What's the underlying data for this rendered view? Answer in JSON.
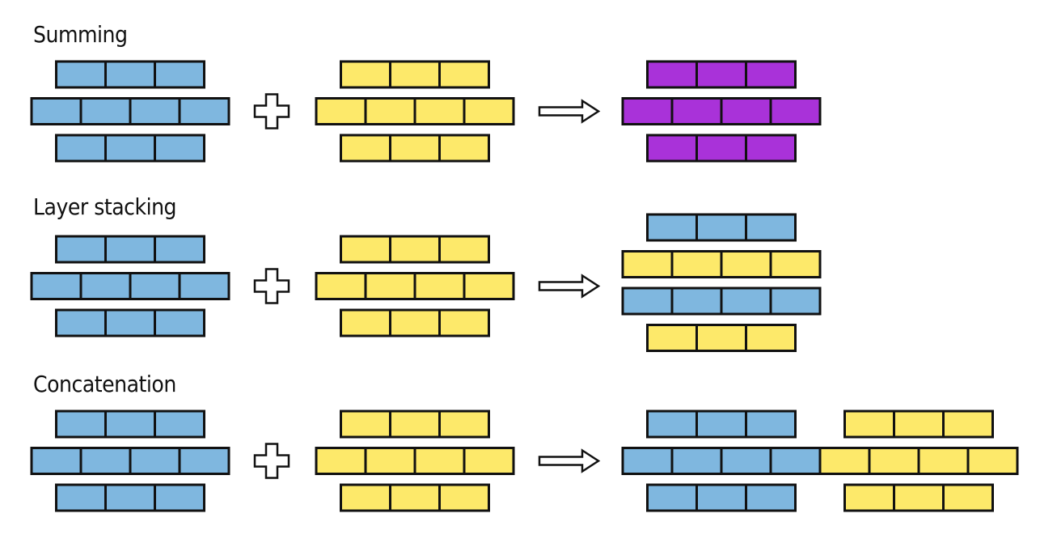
{
  "colors": {
    "blue": "#7fb7df",
    "yellow": "#fde96a",
    "purple": "#a932d9",
    "outline": "#111111",
    "background": "#ffffff"
  },
  "sections": [
    {
      "id": "summing",
      "title": "Summing",
      "inputs": [
        {
          "color": "blue",
          "rows": [
            3,
            4,
            3
          ]
        },
        {
          "color": "yellow",
          "rows": [
            3,
            4,
            3
          ]
        }
      ],
      "operator_icon": "plus-icon",
      "arrow_icon": "arrow-right-icon",
      "result": {
        "kind": "sum",
        "rows": [
          {
            "blocks": [
              {
                "color": "purple",
                "cells": 3
              }
            ]
          },
          {
            "blocks": [
              {
                "color": "purple",
                "cells": 4
              }
            ]
          },
          {
            "blocks": [
              {
                "color": "purple",
                "cells": 3
              }
            ]
          }
        ]
      }
    },
    {
      "id": "layer-stacking",
      "title": "Layer stacking",
      "inputs": [
        {
          "color": "blue",
          "rows": [
            3,
            4,
            3
          ]
        },
        {
          "color": "yellow",
          "rows": [
            3,
            4,
            3
          ]
        }
      ],
      "operator_icon": "plus-icon",
      "arrow_icon": "arrow-right-icon",
      "result": {
        "kind": "stack",
        "rows": [
          {
            "blocks": [
              {
                "color": "blue",
                "cells": 3
              }
            ]
          },
          {
            "blocks": [
              {
                "color": "yellow",
                "cells": 4
              }
            ]
          },
          {
            "blocks": [
              {
                "color": "blue",
                "cells": 4
              }
            ]
          },
          {
            "blocks": [
              {
                "color": "yellow",
                "cells": 3
              }
            ]
          }
        ]
      }
    },
    {
      "id": "concatenation",
      "title": "Concatenation",
      "inputs": [
        {
          "color": "blue",
          "rows": [
            3,
            4,
            3
          ]
        },
        {
          "color": "yellow",
          "rows": [
            3,
            4,
            3
          ]
        }
      ],
      "operator_icon": "plus-icon",
      "arrow_icon": "arrow-right-icon",
      "result": {
        "kind": "concat",
        "rows": [
          {
            "blocks": [
              {
                "color": "blue",
                "cells": 3
              },
              {
                "color": "yellow",
                "cells": 3
              }
            ]
          },
          {
            "blocks": [
              {
                "color": "blue",
                "cells": 4
              },
              {
                "color": "yellow",
                "cells": 4
              }
            ]
          },
          {
            "blocks": [
              {
                "color": "blue",
                "cells": 3
              },
              {
                "color": "yellow",
                "cells": 3
              }
            ]
          }
        ]
      }
    }
  ]
}
